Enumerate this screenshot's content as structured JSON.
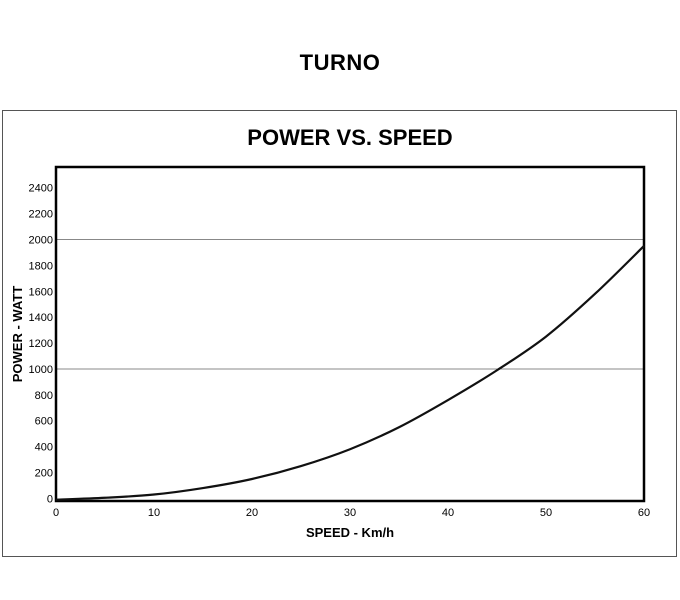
{
  "page": {
    "title": "TURNO"
  },
  "chart_data": {
    "type": "line",
    "title": "POWER VS. SPEED",
    "xlabel": "SPEED - Km/h",
    "ylabel": "POWER - WATT",
    "xlim": [
      0,
      60
    ],
    "ylim": [
      -20,
      2560
    ],
    "xticks": [
      0,
      10,
      20,
      30,
      40,
      50,
      60
    ],
    "yticks": [
      0,
      200,
      400,
      600,
      800,
      1000,
      1200,
      1400,
      1600,
      1800,
      2000,
      2200,
      2400
    ],
    "gridlines_y": [
      1000,
      2000
    ],
    "grid": "horizontal lines at 1000 and 2000",
    "legend": "none",
    "line_color": "#111111",
    "series": [
      {
        "x": [
          0,
          5,
          10,
          15,
          20,
          25,
          30,
          35,
          40,
          45,
          50,
          55,
          60
        ],
        "values": [
          -10,
          5,
          30,
          80,
          150,
          250,
          380,
          550,
          760,
          990,
          1250,
          1580,
          1950
        ]
      }
    ]
  }
}
